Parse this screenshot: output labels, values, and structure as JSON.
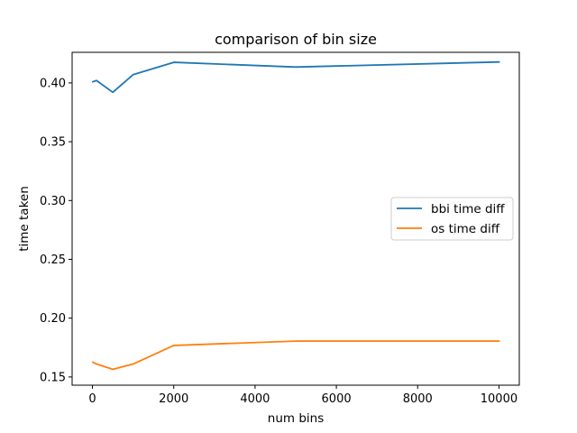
{
  "chart_data": {
    "type": "line",
    "title": "comparison of bin size",
    "xlabel": "num bins",
    "ylabel": "time taken",
    "xlim": [
      -500,
      10500
    ],
    "ylim": [
      0.143,
      0.426
    ],
    "xticks": [
      0,
      2000,
      4000,
      6000,
      8000,
      10000
    ],
    "xtick_labels": [
      "0",
      "2000",
      "4000",
      "6000",
      "8000",
      "10000"
    ],
    "yticks": [
      0.15,
      0.2,
      0.25,
      0.3,
      0.35,
      0.4
    ],
    "ytick_labels": [
      "0.15",
      "0.20",
      "0.25",
      "0.30",
      "0.35",
      "0.40"
    ],
    "grid": false,
    "legend_position": "center-right",
    "x": [
      10,
      100,
      500,
      1000,
      2000,
      5000,
      10000
    ],
    "series": [
      {
        "name": "bbi time diff",
        "color": "#1f77b4",
        "values": [
          0.401,
          0.402,
          0.392,
          0.407,
          0.4175,
          0.4135,
          0.4178
        ]
      },
      {
        "name": "os time diff",
        "color": "#ff7f0e",
        "values": [
          0.1625,
          0.161,
          0.1565,
          0.161,
          0.1768,
          0.1805,
          0.1805
        ]
      }
    ]
  }
}
